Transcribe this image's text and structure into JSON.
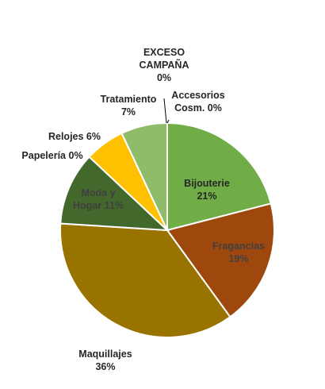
{
  "chart_data": {
    "type": "pie",
    "title": "",
    "slices": [
      {
        "name": "Accesorios Cosm.",
        "lines": [
          "Accesorios",
          "Cosm. 0%"
        ],
        "value": 0.001,
        "color": "#6e9f3c"
      },
      {
        "name": "Bijouterie",
        "lines": [
          "Bijouterie",
          "21%"
        ],
        "value": 21,
        "color": "#70ad47"
      },
      {
        "name": "Fragancias",
        "lines": [
          "Fragancias",
          "19%"
        ],
        "value": 19,
        "color": "#9e480e"
      },
      {
        "name": "Maquillajes",
        "lines": [
          "Maquillajes",
          "36%"
        ],
        "value": 36,
        "color": "#997300"
      },
      {
        "name": "Papelería",
        "lines": [
          "Papelería 0%"
        ],
        "value": 0.001,
        "color": "#43682b"
      },
      {
        "name": "Moda y Hogar",
        "lines": [
          "Moda y",
          "Hogar 11%"
        ],
        "value": 11,
        "color": "#43682b"
      },
      {
        "name": "Relojes",
        "lines": [
          "Relojes 6%"
        ],
        "value": 6,
        "color": "#ffc000"
      },
      {
        "name": "Tratamiento",
        "lines": [
          "Tratamiento",
          "7%"
        ],
        "value": 7,
        "color": "#8fbc6b"
      },
      {
        "name": "EXCESO CAMPAÑA",
        "lines": [
          "EXCESO",
          "CAMPAÑA",
          "0%"
        ],
        "value": 0.001,
        "color": "#a5c98a"
      }
    ]
  }
}
